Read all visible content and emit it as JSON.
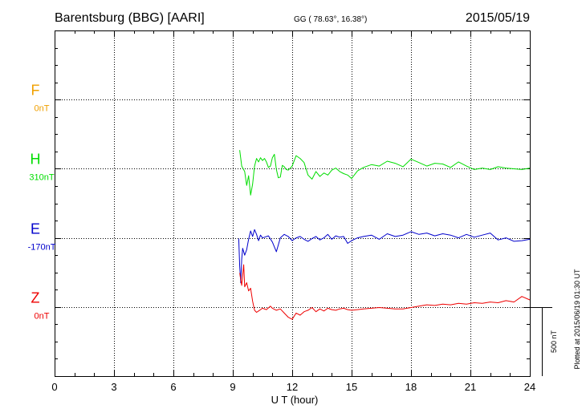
{
  "header": {
    "station": "Barentsburg (BBG)  [AARI]",
    "coords": "GG ( 78.63°,  16.38°)",
    "date": "2015/05/19"
  },
  "side_note": "Plotted at 2015/06/19 01:30 UT",
  "scale_label": "500 nT",
  "chart_data": {
    "type": "line",
    "xlabel": "U T (hour)",
    "ylabel": "",
    "xlim": [
      0,
      24
    ],
    "xticks": [
      0,
      3,
      6,
      9,
      12,
      15,
      18,
      21,
      24
    ],
    "grid": true,
    "scale_bar_nT": 500,
    "components": [
      {
        "name": "F",
        "baseline": "0nT",
        "color": "#f0a000"
      },
      {
        "name": "H",
        "baseline": "310nT",
        "color": "#00dd00"
      },
      {
        "name": "E",
        "baseline": "-170nT",
        "color": "#0000cc"
      },
      {
        "name": "Z",
        "baseline": "0nT",
        "color": "#ee0000"
      }
    ],
    "series": [
      {
        "name": "H",
        "unit": "nT",
        "x": [
          9.35,
          9.45,
          9.6,
          9.7,
          9.8,
          9.9,
          10.0,
          10.1,
          10.2,
          10.3,
          10.4,
          10.5,
          10.6,
          10.7,
          10.8,
          10.9,
          11.0,
          11.1,
          11.2,
          11.3,
          11.4,
          11.5,
          11.6,
          11.7,
          11.8,
          12.0,
          12.2,
          12.4,
          12.6,
          12.8,
          13.0,
          13.2,
          13.4,
          13.6,
          13.8,
          14.0,
          14.2,
          14.4,
          14.6,
          14.8,
          15.0,
          15.3,
          15.6,
          16.0,
          16.4,
          16.8,
          17.2,
          17.6,
          18.0,
          18.4,
          18.8,
          19.2,
          19.6,
          20.0,
          20.4,
          20.8,
          21.2,
          21.6,
          22.0,
          22.4,
          22.8,
          23.2,
          23.6,
          24.0
        ],
        "y": [
          135,
          20,
          -20,
          -120,
          -50,
          -190,
          -110,
          20,
          75,
          50,
          80,
          60,
          75,
          50,
          10,
          20,
          80,
          105,
          -5,
          -65,
          -60,
          25,
          15,
          -5,
          -10,
          20,
          95,
          75,
          45,
          -45,
          -75,
          -20,
          -55,
          -30,
          -45,
          -10,
          5,
          -20,
          -35,
          -45,
          -70,
          -15,
          10,
          30,
          20,
          55,
          40,
          15,
          70,
          45,
          20,
          40,
          35,
          10,
          50,
          20,
          -5,
          5,
          -5,
          15,
          5,
          0,
          -5,
          5
        ]
      },
      {
        "name": "E",
        "unit": "nT",
        "x": [
          9.3,
          9.35,
          9.4,
          9.45,
          9.5,
          9.6,
          9.7,
          9.8,
          9.9,
          10.0,
          10.1,
          10.2,
          10.3,
          10.4,
          10.5,
          10.6,
          10.8,
          11.0,
          11.2,
          11.4,
          11.6,
          11.8,
          12.0,
          12.2,
          12.4,
          12.6,
          12.8,
          13.0,
          13.2,
          13.4,
          13.6,
          13.8,
          14.0,
          14.2,
          14.4,
          14.6,
          14.8,
          15.0,
          15.3,
          15.6,
          16.0,
          16.4,
          16.8,
          17.2,
          17.6,
          18.0,
          18.4,
          18.8,
          19.2,
          19.6,
          20.0,
          20.4,
          20.8,
          21.2,
          21.6,
          22.0,
          22.4,
          22.8,
          23.2,
          23.6,
          24.0
        ],
        "y": [
          0,
          -200,
          -320,
          -150,
          -70,
          -120,
          -80,
          -5,
          55,
          15,
          65,
          30,
          -15,
          25,
          5,
          10,
          20,
          -25,
          -95,
          5,
          30,
          15,
          -15,
          5,
          15,
          -5,
          -20,
          0,
          15,
          -10,
          5,
          30,
          -5,
          20,
          10,
          15,
          -35,
          -15,
          5,
          15,
          25,
          -5,
          35,
          15,
          25,
          50,
          30,
          40,
          20,
          35,
          25,
          5,
          30,
          10,
          25,
          40,
          -10,
          5,
          -20,
          -15,
          -5
        ]
      },
      {
        "name": "Z",
        "unit": "nT",
        "x": [
          9.35,
          9.45,
          9.55,
          9.6,
          9.7,
          9.8,
          9.9,
          10.0,
          10.1,
          10.2,
          10.3,
          10.5,
          10.7,
          10.9,
          11.0,
          11.2,
          11.4,
          11.6,
          11.8,
          12.0,
          12.2,
          12.4,
          12.6,
          12.8,
          13.0,
          13.2,
          13.4,
          13.6,
          13.8,
          14.0,
          14.2,
          14.4,
          14.6,
          14.8,
          15.0,
          15.3,
          15.6,
          16.0,
          16.4,
          16.8,
          17.2,
          17.6,
          18.0,
          18.4,
          18.8,
          19.2,
          19.6,
          20.0,
          20.4,
          20.8,
          21.2,
          21.6,
          22.0,
          22.4,
          22.8,
          23.2,
          23.6,
          24.0
        ],
        "y": [
          250,
          160,
          310,
          150,
          180,
          120,
          140,
          45,
          -20,
          -35,
          -25,
          -5,
          -15,
          10,
          -5,
          -20,
          -10,
          -40,
          -70,
          -85,
          -40,
          -55,
          -30,
          -20,
          0,
          -30,
          -10,
          -25,
          -5,
          -15,
          -20,
          -10,
          -5,
          -15,
          -20,
          -15,
          -10,
          -5,
          0,
          -5,
          -10,
          -10,
          0,
          10,
          20,
          15,
          25,
          20,
          30,
          25,
          35,
          30,
          40,
          35,
          50,
          40,
          80,
          55
        ]
      }
    ]
  }
}
